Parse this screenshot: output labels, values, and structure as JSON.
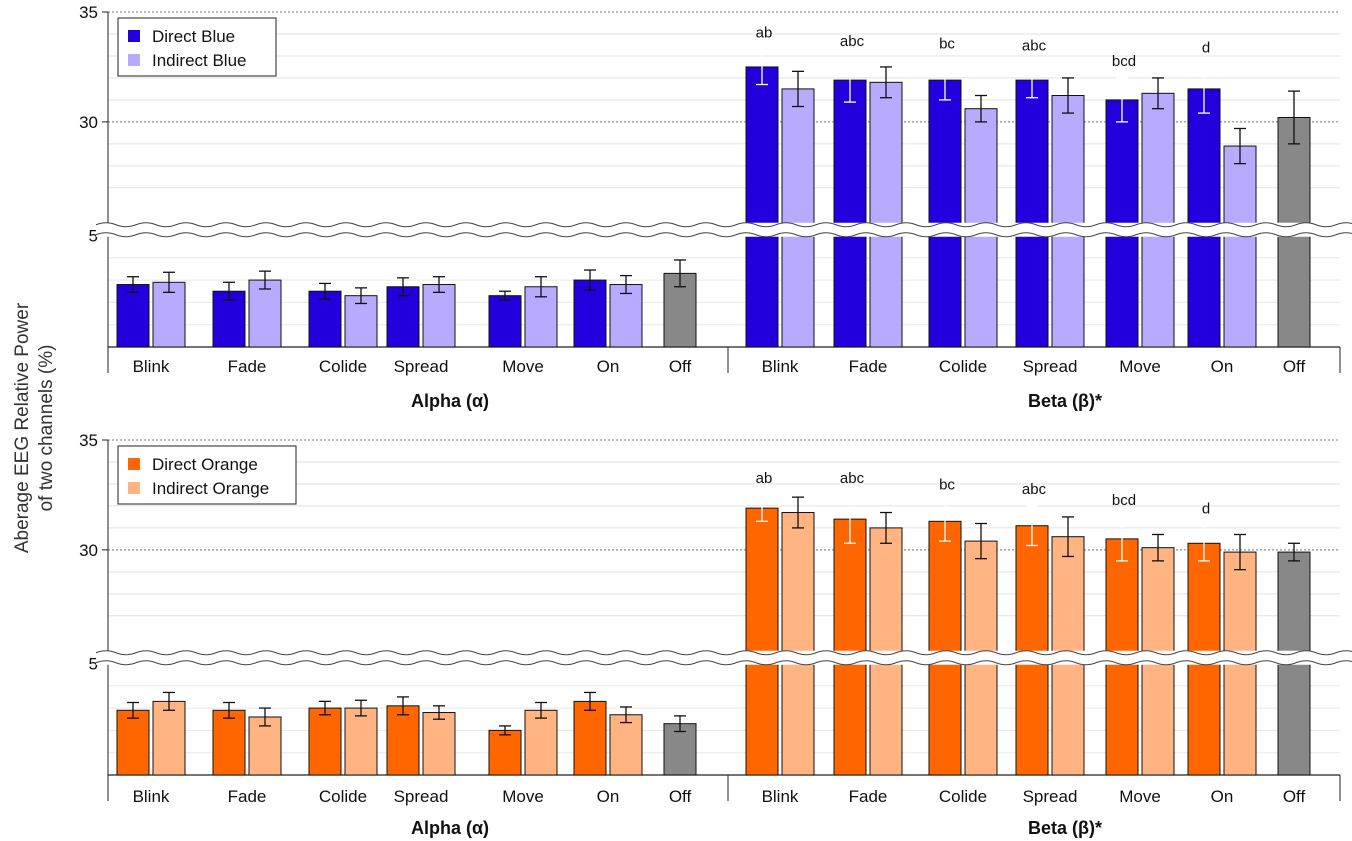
{
  "y_axis_label_line1": "Aberage EEG Relative Power",
  "y_axis_label_line2": "of two channels (%)",
  "chart_data": [
    {
      "type": "bar",
      "group_labels": [
        "Alpha (α)",
        "Beta (β)*"
      ],
      "categories": [
        "Blink",
        "Fade",
        "Colide",
        "Spread",
        "Move",
        "On",
        "Off"
      ],
      "y_ticks": [
        "35",
        "30",
        "5"
      ],
      "axis_break": true,
      "colors": {
        "direct": "#2200dd",
        "indirect": "#b8aaff",
        "off": "#888888"
      },
      "legend": [
        "Direct Blue",
        "Indirect Blue"
      ],
      "legend_position": "top-left",
      "alpha": {
        "direct": [
          2.8,
          2.5,
          2.5,
          2.7,
          2.3,
          3.0
        ],
        "direct_err": [
          0.35,
          0.4,
          0.35,
          0.4,
          0.2,
          0.45
        ],
        "indirect": [
          2.9,
          3.0,
          2.3,
          2.8,
          2.7,
          2.8
        ],
        "indirect_err": [
          0.45,
          0.4,
          0.35,
          0.35,
          0.45,
          0.4
        ],
        "off": 3.3,
        "off_err": 0.6
      },
      "beta": {
        "direct": [
          32.5,
          31.9,
          31.9,
          31.9,
          31.0,
          31.5
        ],
        "direct_err": [
          0.8,
          1.0,
          0.9,
          0.8,
          1.0,
          1.1
        ],
        "indirect": [
          31.5,
          31.8,
          30.6,
          31.2,
          31.3,
          28.9
        ],
        "indirect_err": [
          0.8,
          0.7,
          0.6,
          0.8,
          0.7,
          0.8
        ],
        "off": 30.2,
        "off_err": 1.2,
        "significance": [
          "ab",
          "abc",
          "bc",
          "abc",
          "bcd",
          "d"
        ]
      }
    },
    {
      "type": "bar",
      "group_labels": [
        "Alpha (α)",
        "Beta (β)*"
      ],
      "categories": [
        "Blink",
        "Fade",
        "Colide",
        "Spread",
        "Move",
        "On",
        "Off"
      ],
      "y_ticks": [
        "35",
        "30",
        "5"
      ],
      "axis_break": true,
      "colors": {
        "direct": "#ff6600",
        "indirect": "#ffb482",
        "off": "#888888"
      },
      "legend": [
        "Direct Orange",
        "Indirect Orange"
      ],
      "legend_position": "top-left",
      "alpha": {
        "direct": [
          2.9,
          2.9,
          3.0,
          3.1,
          2.0,
          3.3
        ],
        "direct_err": [
          0.35,
          0.35,
          0.3,
          0.4,
          0.2,
          0.4
        ],
        "indirect": [
          3.3,
          2.6,
          3.0,
          2.8,
          2.9,
          2.7
        ],
        "indirect_err": [
          0.4,
          0.4,
          0.35,
          0.3,
          0.35,
          0.35
        ],
        "off": 2.3,
        "off_err": 0.35
      },
      "beta": {
        "direct": [
          31.9,
          31.4,
          31.3,
          31.1,
          30.5,
          30.3
        ],
        "direct_err": [
          0.6,
          1.1,
          0.9,
          0.9,
          1.0,
          0.8
        ],
        "indirect": [
          31.7,
          31.0,
          30.4,
          30.6,
          30.1,
          29.9
        ],
        "indirect_err": [
          0.7,
          0.7,
          0.8,
          0.9,
          0.6,
          0.8
        ],
        "off": 29.9,
        "off_err": 0.4,
        "significance": [
          "ab",
          "abc",
          "bc",
          "abc",
          "bcd",
          "d"
        ]
      }
    }
  ]
}
